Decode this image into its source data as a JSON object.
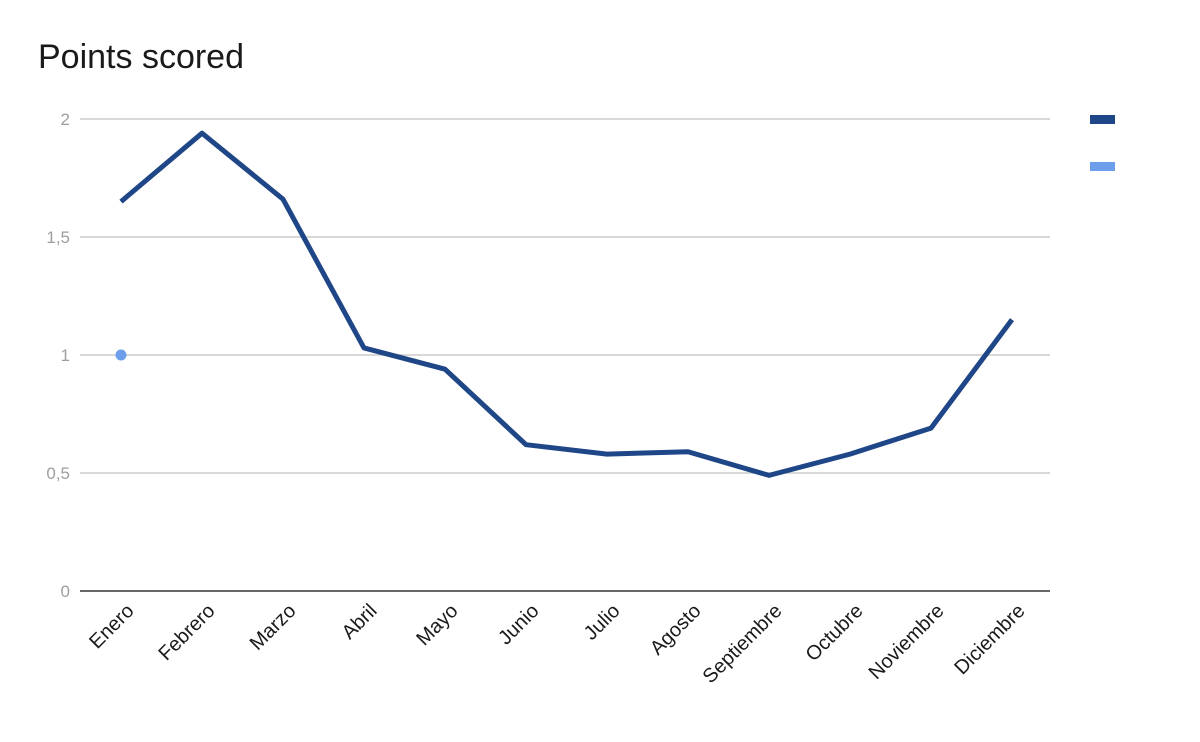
{
  "chart_data": {
    "type": "line",
    "title": "Points scored",
    "categories": [
      "Enero",
      "Febrero",
      "Marzo",
      "Abril",
      "Mayo",
      "Junio",
      "Julio",
      "Agosto",
      "Septiembre",
      "Octubre",
      "Noviembre",
      "Diciembre"
    ],
    "series": [
      {
        "values": [
          1.65,
          1.94,
          1.66,
          1.03,
          0.94,
          0.62,
          0.58,
          0.59,
          0.49,
          0.58,
          0.69,
          1.15
        ],
        "color": "#1f4787",
        "style": "line"
      },
      {
        "values": [
          1.0,
          null,
          null,
          null,
          null,
          null,
          null,
          null,
          null,
          null,
          null,
          null
        ],
        "color": "#6d9eeb",
        "style": "point"
      }
    ],
    "ylim": [
      0,
      2
    ],
    "yticks": [
      0,
      0.5,
      1,
      1.5,
      2
    ],
    "ytick_labels": [
      "0",
      "0,5",
      "1",
      "1,5",
      "2"
    ],
    "xlabel": "",
    "ylabel": "",
    "grid": true,
    "legend": "right"
  }
}
